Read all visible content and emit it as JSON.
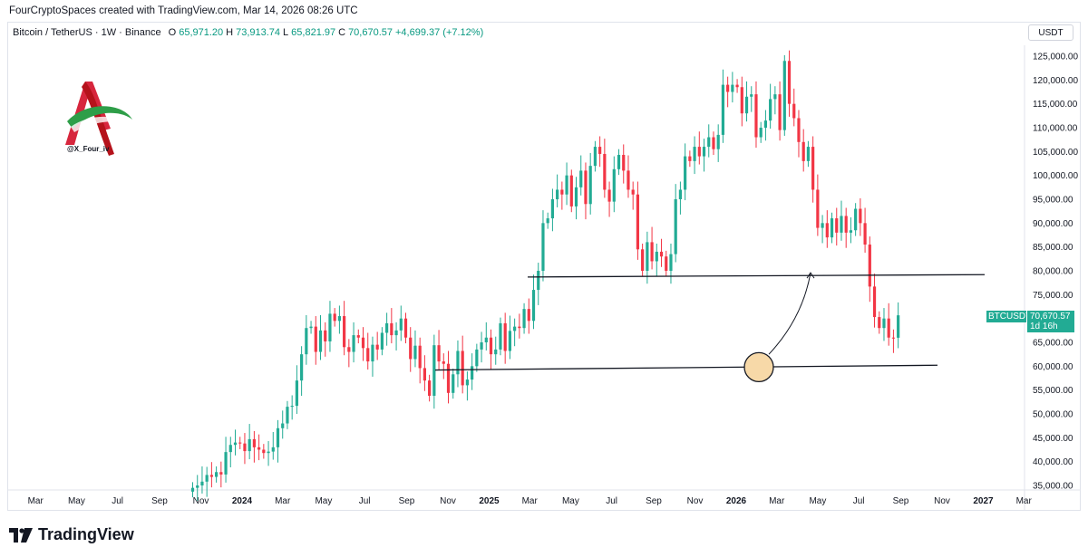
{
  "credit": "FourCryptoSpaces created with TradingView.com, Mar 14, 2026 08:26 UTC",
  "legend": {
    "symbol": "Bitcoin / TetherUS · 1W · Binance",
    "open_label": "O",
    "open": "65,971.20",
    "high_label": "H",
    "high": "73,913.74",
    "low_label": "L",
    "low": "65,821.97",
    "close_label": "C",
    "close": "70,670.57",
    "change": "+4,699.37 (+7.12%)"
  },
  "currency": "USDT",
  "logo_handle": "@X_Four_iv",
  "price_tag": {
    "symbol": "BTCUSDT",
    "price": "70,670.57",
    "countdown": "1d 16h"
  },
  "brand": "TradingView",
  "colors": {
    "up": "#22ab94",
    "down": "#f23645",
    "line": "#131722",
    "circle_fill": "#f7d9a8",
    "circle_stroke": "#131722"
  },
  "chart_data": {
    "type": "candlestick",
    "y_ticks": [
      "125,000.00",
      "120,000.00",
      "115,000.00",
      "110,000.00",
      "105,000.00",
      "100,000.00",
      "95,000.00",
      "90,000.00",
      "85,000.00",
      "80,000.00",
      "75,000.00",
      "70,000.00",
      "65,000.00",
      "60,000.00",
      "55,000.00",
      "50,000.00",
      "45,000.00",
      "40,000.00",
      "35,000.00"
    ],
    "y_values": [
      125000,
      120000,
      115000,
      110000,
      105000,
      100000,
      95000,
      90000,
      85000,
      80000,
      75000,
      70000,
      65000,
      60000,
      55000,
      50000,
      45000,
      40000,
      35000
    ],
    "x_ticks": [
      {
        "label": "Mar",
        "bold": false,
        "t": 2023.164
      },
      {
        "label": "May",
        "bold": false,
        "t": 2023.33
      },
      {
        "label": "Jul",
        "bold": false,
        "t": 2023.496
      },
      {
        "label": "Sep",
        "bold": false,
        "t": 2023.666
      },
      {
        "label": "Nov",
        "bold": false,
        "t": 2023.833
      },
      {
        "label": "2024",
        "bold": true,
        "t": 2024.0
      },
      {
        "label": "Mar",
        "bold": false,
        "t": 2024.164
      },
      {
        "label": "May",
        "bold": false,
        "t": 2024.33
      },
      {
        "label": "Jul",
        "bold": false,
        "t": 2024.496
      },
      {
        "label": "Sep",
        "bold": false,
        "t": 2024.666
      },
      {
        "label": "Nov",
        "bold": false,
        "t": 2024.833
      },
      {
        "label": "2025",
        "bold": true,
        "t": 2025.0
      },
      {
        "label": "Mar",
        "bold": false,
        "t": 2025.164
      },
      {
        "label": "May",
        "bold": false,
        "t": 2025.33
      },
      {
        "label": "Jul",
        "bold": false,
        "t": 2025.496
      },
      {
        "label": "Sep",
        "bold": false,
        "t": 2025.666
      },
      {
        "label": "Nov",
        "bold": false,
        "t": 2025.833
      },
      {
        "label": "2026",
        "bold": true,
        "t": 2026.0
      },
      {
        "label": "Mar",
        "bold": false,
        "t": 2026.164
      },
      {
        "label": "May",
        "bold": false,
        "t": 2026.33
      },
      {
        "label": "Jul",
        "bold": false,
        "t": 2026.496
      },
      {
        "label": "Sep",
        "bold": false,
        "t": 2026.666
      },
      {
        "label": "Nov",
        "bold": false,
        "t": 2026.833
      },
      {
        "label": "2027",
        "bold": true,
        "t": 2027.0
      },
      {
        "label": "Mar",
        "bold": false,
        "t": 2027.164
      }
    ],
    "closes": [
      34500,
      35000,
      35800,
      37200,
      36800,
      37800,
      37300,
      42000,
      43500,
      44000,
      43800,
      42200,
      44700,
      43000,
      42500,
      41800,
      42100,
      43000,
      47000,
      48000,
      51500,
      51700,
      57000,
      62500,
      68000,
      68300,
      63000,
      67500,
      65200,
      71000,
      69500,
      70500,
      64000,
      63000,
      66500,
      66000,
      63800,
      61000,
      64500,
      63500,
      67000,
      69000,
      66500,
      67500,
      70000,
      66000,
      61500,
      64300,
      59600,
      57000,
      53800,
      64400,
      61000,
      60500,
      54400,
      58300,
      63200,
      56000,
      57200,
      60000,
      63500,
      65000,
      66000,
      62500,
      63500,
      69000,
      63200,
      67400,
      68300,
      68000,
      72000,
      69500,
      76000,
      80000,
      90000,
      91000,
      95000,
      97000,
      96000,
      100000,
      93500,
      97500,
      101000,
      94000,
      102000,
      106000,
      104500,
      97000,
      94500,
      101300,
      104300,
      101000,
      97000,
      96000,
      84500,
      80000,
      86000,
      82000,
      84000,
      83000,
      80000,
      83500,
      95000,
      97000,
      104000,
      103000,
      106000,
      104000,
      106000,
      108000,
      105500,
      108500,
      119000,
      117500,
      119000,
      118500,
      113000,
      116500,
      117000,
      108000,
      110000,
      111500,
      116000,
      117000,
      109500,
      124000,
      115000,
      112000,
      107000,
      103000,
      106000,
      97000,
      89000,
      90000,
      87000,
      91000,
      88000,
      91500,
      88000,
      88500,
      93000,
      90000,
      85500,
      76700,
      70300,
      68000,
      70000,
      66000,
      65971,
      70671
    ],
    "levels": [
      {
        "name": "support",
        "y": 59000
      },
      {
        "name": "resistance",
        "y": 79000
      }
    ]
  }
}
